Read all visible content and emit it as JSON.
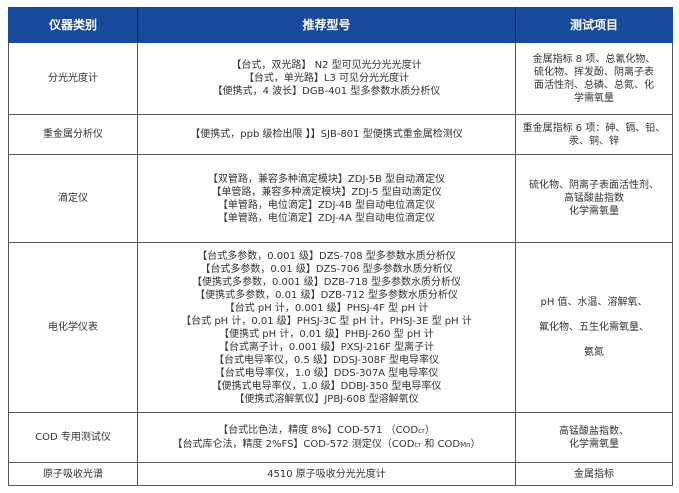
{
  "header": {
    "col1": "仪器类别",
    "col2": "推荐型号",
    "col3": "测试项目"
  },
  "colors": {
    "header_bg": "#174a9b",
    "header_text": "#ffffff"
  },
  "rows": [
    {
      "category": "分光光度计",
      "models": [
        "【台式，双光路】 N2 型可见光分光光度计",
        "【台式，单光路】L3 可见分光光度计",
        "【便携式，4 波长】DGB-401 型多参数水质分析仪"
      ],
      "tests": [
        "金属指标 8 项、总氰化物、",
        "硫化物、挥发酚、阴离子表",
        "面活性剂、总磷、总氮、化",
        "学需氧量"
      ]
    },
    {
      "category": "重金属分析仪",
      "models": [
        "【便携式，ppb 级检出限 】】SJB-801 型便携式重金属检测仪"
      ],
      "tests": [
        "重金属指标 6 项：砷、镉、铅、",
        "汞、铜、锌"
      ]
    },
    {
      "category": "滴定仪",
      "models": [
        "【双管路，兼容多种滴定模块】ZDJ-5B 型自动滴定仪",
        "【单管路，兼容多种滴定模块】ZDJ-5 型自动滴定仪",
        "【单管路，电位滴定】ZDJ-4B 型自动电位滴定仪",
        "【单管路，电位滴定】ZDJ-4A 型自动电位滴定仪"
      ],
      "tests": [
        "硫化物、阴离子表面活性剂、",
        "高锰酸盐指数",
        "化学需氧量"
      ]
    },
    {
      "category": "电化学仪表",
      "models": [
        "【台式多参数，0.001 级】DZS-708 型多参数水质分析仪",
        "【台式多参数，0.01 级】DZS-706 型多参数水质分析仪",
        "【便携式多参数，0.001 级】DZB-718 型多参数水质分析仪",
        "【便携式多参数，0.01 级】DZB-712 型多参数水质分析仪",
        "【台式 pH 计，0.001 级】PHSJ-4F 型 pH 计",
        "【台式 pH 计，0.01 级】PHSJ-3C 型 pH 计，PHSJ-3E 型 pH 计",
        "【便携式 pH 计，0.01 级】PHBJ-260 型 pH 计",
        "【台式离子计，0.001 级】PXSJ-216F 型离子计",
        "【台式电导率仪，0.5 级】DDSJ-308F 型电导率仪",
        "【台式电导率仪，1.0 级】DDS-307A 型电导率仪",
        "【便携式电导率仪，1.0 级】DDBJ-350 型电导率仪",
        "【便携式溶解氧仪】JPBJ-608 型溶解氧仪"
      ],
      "tests": [
        "pH 值、水温、溶解氧、",
        "氟化物、五生化需氧量、",
        "氨氮"
      ]
    },
    {
      "category": "COD 专用测试仪",
      "models_rich": [
        {
          "prefix": "【台式比色法，精度 8%】COD-571 （COD",
          "sub1": "cr",
          "suffix": "）"
        },
        {
          "prefix": "【台式库仑法，精度 2%FS】COD-572 测定仪（COD",
          "sub1": "cr",
          "mid": " 和 COD",
          "sub2": "Mn",
          "suffix": "）"
        }
      ],
      "tests": [
        "高锰酸盐指数、",
        "化学需氧量"
      ]
    },
    {
      "category": "原子吸收光谱",
      "models": [
        "4510 原子吸收分光光度计"
      ],
      "tests": [
        "金属指标"
      ]
    }
  ]
}
